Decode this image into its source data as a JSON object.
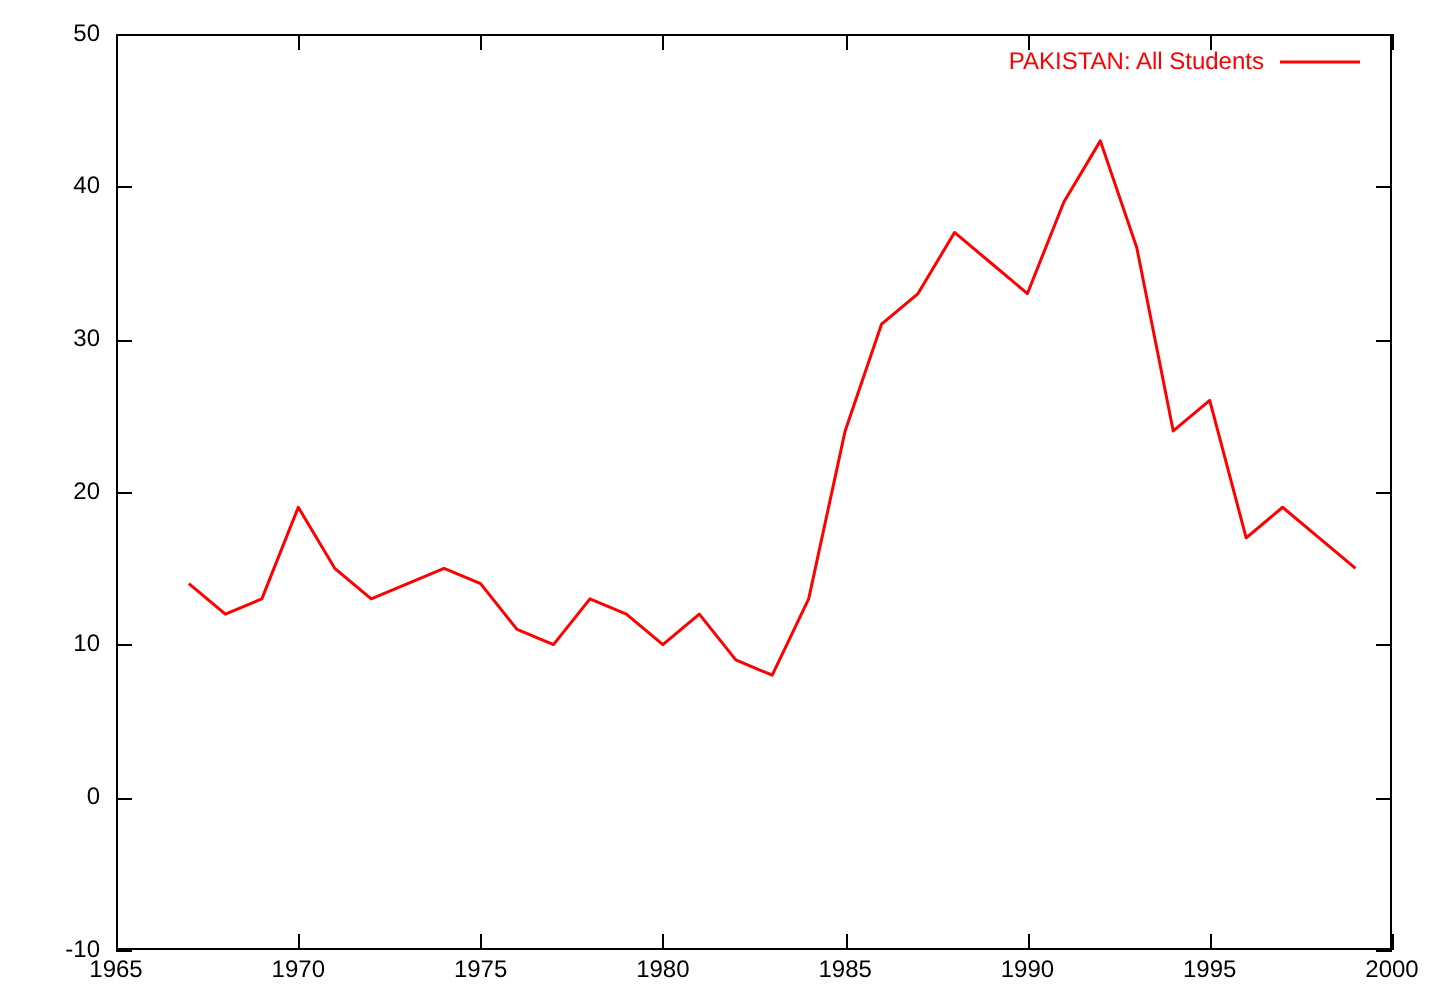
{
  "chart_data": {
    "type": "line",
    "x": [
      1967,
      1968,
      1969,
      1970,
      1971,
      1972,
      1973,
      1974,
      1975,
      1976,
      1977,
      1978,
      1979,
      1980,
      1981,
      1982,
      1983,
      1984,
      1985,
      1986,
      1987,
      1988,
      1989,
      1990,
      1991,
      1992,
      1993,
      1994,
      1995,
      1996,
      1997,
      1998,
      1999
    ],
    "series": [
      {
        "name": "PAKISTAN: All Students",
        "color": "#ff0000",
        "values": [
          14,
          12,
          13,
          19,
          15,
          13,
          14,
          15,
          14,
          11,
          10,
          13,
          12,
          10,
          12,
          9,
          8,
          13,
          24,
          31,
          33,
          37,
          35,
          33,
          39,
          43,
          36,
          24,
          26,
          17,
          19,
          17,
          15
        ]
      }
    ],
    "xlim": [
      1965,
      2000
    ],
    "xticks": [
      1965,
      1970,
      1975,
      1980,
      1985,
      1990,
      1995,
      2000
    ],
    "ylim": [
      -10,
      50
    ],
    "yticks": [
      -10,
      0,
      10,
      20,
      30,
      40,
      50
    ],
    "grid": false,
    "legend": "top right",
    "marker": "none",
    "line_style": "solid"
  }
}
